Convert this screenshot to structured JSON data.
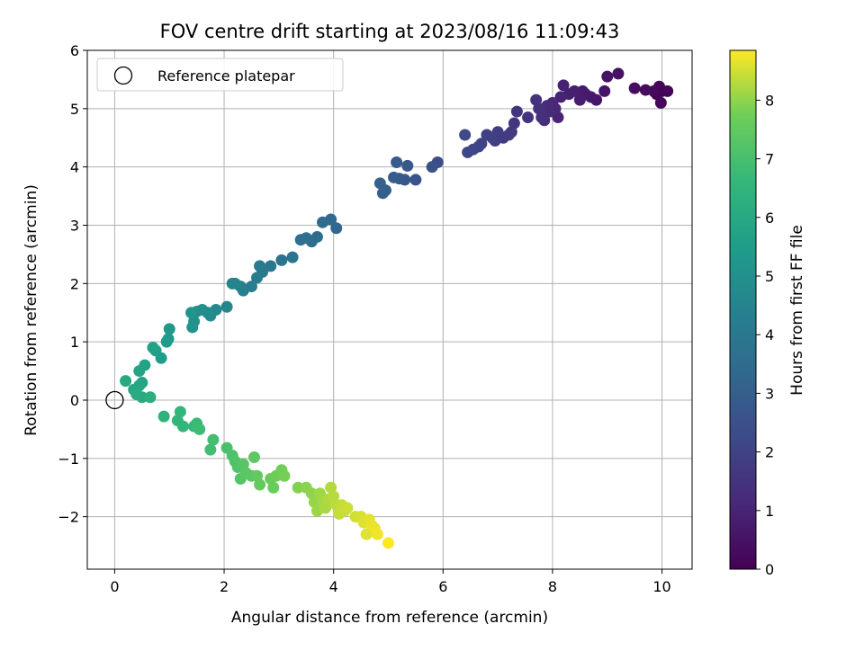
{
  "chart_data": {
    "type": "scatter",
    "title": "FOV centre drift starting at 2023/08/16 11:09:43",
    "xlabel": "Angular distance from reference (arcmin)",
    "ylabel": "Rotation from reference (arcmin)",
    "xlim": [
      -0.5,
      10.55
    ],
    "ylim": [
      -2.9,
      6.0
    ],
    "xticks": [
      0,
      2,
      4,
      6,
      8,
      10
    ],
    "yticks": [
      -2,
      -1,
      0,
      1,
      2,
      3,
      4,
      5,
      6
    ],
    "grid": true,
    "legend": {
      "placement": "top-left",
      "entries": [
        "Reference platepar"
      ]
    },
    "reference_point": {
      "x": 0,
      "y": 0
    },
    "colorbar": {
      "label": "Hours from first FF file",
      "colormap": "viridis",
      "range": [
        0,
        8.85
      ],
      "ticks": [
        0,
        1,
        2,
        3,
        4,
        5,
        6,
        7,
        8
      ]
    },
    "series": [
      {
        "points": [
          [
            10.0,
            5.3,
            0.0
          ],
          [
            9.95,
            5.38,
            0.05
          ],
          [
            9.9,
            5.25,
            0.1
          ],
          [
            10.1,
            5.3,
            0.15
          ],
          [
            9.98,
            5.1,
            0.2
          ],
          [
            9.85,
            5.3,
            0.25
          ],
          [
            9.7,
            5.32,
            0.3
          ],
          [
            9.5,
            5.35,
            0.38
          ],
          [
            9.2,
            5.6,
            0.45
          ],
          [
            9.0,
            5.55,
            0.5
          ],
          [
            8.95,
            5.3,
            0.55
          ],
          [
            8.8,
            5.15,
            0.6
          ],
          [
            8.7,
            5.2,
            0.65
          ],
          [
            8.6,
            5.25,
            0.7
          ],
          [
            8.55,
            5.3,
            0.75
          ],
          [
            8.5,
            5.15,
            0.8
          ],
          [
            8.4,
            5.3,
            0.85
          ],
          [
            8.3,
            5.25,
            0.9
          ],
          [
            8.2,
            5.4,
            0.95
          ],
          [
            8.15,
            5.2,
            1.0
          ],
          [
            8.1,
            4.85,
            1.05
          ],
          [
            8.05,
            5.0,
            1.1
          ],
          [
            8.0,
            5.1,
            1.15
          ],
          [
            7.95,
            4.95,
            1.2
          ],
          [
            7.9,
            5.05,
            1.25
          ],
          [
            7.85,
            4.8,
            1.3
          ],
          [
            7.8,
            4.85,
            1.35
          ],
          [
            7.75,
            5.0,
            1.4
          ],
          [
            7.7,
            5.15,
            1.45
          ],
          [
            7.55,
            4.85,
            1.5
          ],
          [
            7.35,
            4.95,
            1.55
          ],
          [
            7.3,
            4.75,
            1.6
          ],
          [
            7.25,
            4.6,
            1.65
          ],
          [
            7.2,
            4.55,
            1.7
          ],
          [
            7.1,
            4.5,
            1.75
          ],
          [
            7.0,
            4.6,
            1.8
          ],
          [
            6.95,
            4.45,
            1.85
          ],
          [
            6.9,
            4.5,
            1.9
          ],
          [
            6.8,
            4.55,
            1.95
          ],
          [
            6.7,
            4.4,
            2.0
          ],
          [
            6.65,
            4.35,
            2.05
          ],
          [
            6.55,
            4.3,
            2.1
          ],
          [
            6.45,
            4.25,
            2.15
          ],
          [
            6.4,
            4.55,
            2.2
          ],
          [
            5.9,
            4.08,
            2.4
          ],
          [
            5.8,
            4.0,
            2.5
          ],
          [
            5.5,
            3.78,
            2.6
          ],
          [
            5.35,
            4.02,
            2.7
          ],
          [
            5.3,
            3.78,
            2.75
          ],
          [
            5.2,
            3.8,
            2.8
          ],
          [
            5.15,
            4.08,
            2.85
          ],
          [
            5.1,
            3.82,
            2.9
          ],
          [
            4.95,
            3.6,
            3.0
          ],
          [
            4.9,
            3.55,
            3.05
          ],
          [
            4.85,
            3.72,
            3.1
          ],
          [
            4.05,
            2.95,
            3.3
          ],
          [
            3.95,
            3.1,
            3.4
          ],
          [
            3.8,
            3.05,
            3.45
          ],
          [
            3.7,
            2.8,
            3.5
          ],
          [
            3.6,
            2.72,
            3.55
          ],
          [
            3.5,
            2.78,
            3.6
          ],
          [
            3.4,
            2.75,
            3.65
          ],
          [
            3.25,
            2.45,
            3.75
          ],
          [
            3.05,
            2.4,
            3.85
          ],
          [
            2.85,
            2.3,
            3.95
          ],
          [
            2.7,
            2.2,
            4.05
          ],
          [
            2.65,
            2.3,
            4.1
          ],
          [
            2.6,
            2.1,
            4.15
          ],
          [
            2.5,
            1.95,
            4.25
          ],
          [
            2.35,
            1.88,
            4.35
          ],
          [
            2.3,
            1.95,
            4.4
          ],
          [
            2.2,
            2.0,
            4.45
          ],
          [
            2.15,
            2.0,
            4.5
          ],
          [
            2.05,
            1.6,
            4.6
          ],
          [
            1.85,
            1.55,
            4.75
          ],
          [
            1.75,
            1.45,
            4.8
          ],
          [
            1.7,
            1.5,
            4.85
          ],
          [
            1.6,
            1.55,
            4.9
          ],
          [
            1.5,
            1.52,
            4.95
          ],
          [
            1.45,
            1.35,
            5.05
          ],
          [
            1.42,
            1.25,
            5.1
          ],
          [
            1.4,
            1.5,
            5.15
          ],
          [
            1.0,
            1.22,
            5.35
          ],
          [
            0.98,
            1.05,
            5.4
          ],
          [
            0.95,
            1.0,
            5.45
          ],
          [
            0.85,
            0.72,
            5.55
          ],
          [
            0.75,
            0.85,
            5.6
          ],
          [
            0.7,
            0.9,
            5.65
          ],
          [
            0.55,
            0.6,
            5.75
          ],
          [
            0.45,
            0.5,
            5.8
          ],
          [
            0.5,
            0.3,
            5.85
          ],
          [
            0.45,
            0.25,
            5.9
          ],
          [
            0.35,
            0.18,
            5.95
          ],
          [
            0.2,
            0.33,
            6.0
          ],
          [
            0.5,
            0.05,
            6.05
          ],
          [
            0.4,
            0.1,
            6.1
          ],
          [
            0.65,
            0.05,
            6.2
          ],
          [
            0.9,
            -0.28,
            6.4
          ],
          [
            1.15,
            -0.35,
            6.5
          ],
          [
            1.2,
            -0.2,
            6.55
          ],
          [
            1.25,
            -0.45,
            6.6
          ],
          [
            1.45,
            -0.45,
            6.7
          ],
          [
            1.5,
            -0.4,
            6.75
          ],
          [
            1.55,
            -0.5,
            6.8
          ],
          [
            1.75,
            -0.85,
            6.9
          ],
          [
            1.8,
            -0.68,
            6.95
          ],
          [
            2.05,
            -0.82,
            7.05
          ],
          [
            2.15,
            -0.95,
            7.1
          ],
          [
            2.2,
            -1.05,
            7.15
          ],
          [
            2.25,
            -1.15,
            7.2
          ],
          [
            2.3,
            -1.35,
            7.25
          ],
          [
            2.35,
            -1.1,
            7.3
          ],
          [
            2.4,
            -1.25,
            7.35
          ],
          [
            2.5,
            -1.3,
            7.4
          ],
          [
            2.55,
            -0.98,
            7.45
          ],
          [
            2.6,
            -1.3,
            7.5
          ],
          [
            2.65,
            -1.45,
            7.55
          ],
          [
            2.85,
            -1.35,
            7.6
          ],
          [
            2.9,
            -1.5,
            7.65
          ],
          [
            2.95,
            -1.3,
            7.7
          ],
          [
            3.05,
            -1.2,
            7.75
          ],
          [
            3.1,
            -1.3,
            7.8
          ],
          [
            3.35,
            -1.5,
            7.9
          ],
          [
            3.5,
            -1.5,
            7.95
          ],
          [
            3.6,
            -1.6,
            8.0
          ],
          [
            3.65,
            -1.75,
            8.05
          ],
          [
            3.7,
            -1.9,
            8.1
          ],
          [
            3.75,
            -1.6,
            8.12
          ],
          [
            3.8,
            -1.75,
            8.15
          ],
          [
            3.85,
            -1.85,
            8.2
          ],
          [
            3.9,
            -1.7,
            8.25
          ],
          [
            3.95,
            -1.5,
            8.28
          ],
          [
            4.0,
            -1.65,
            8.3
          ],
          [
            4.05,
            -1.8,
            8.35
          ],
          [
            4.1,
            -1.95,
            8.4
          ],
          [
            4.15,
            -1.8,
            8.42
          ],
          [
            4.2,
            -1.9,
            8.45
          ],
          [
            4.25,
            -1.85,
            8.48
          ],
          [
            4.4,
            -2.0,
            8.5
          ],
          [
            4.5,
            -2.0,
            8.55
          ],
          [
            4.55,
            -2.1,
            8.6
          ],
          [
            4.6,
            -2.3,
            8.62
          ],
          [
            4.65,
            -2.05,
            8.65
          ],
          [
            4.7,
            -2.15,
            8.68
          ],
          [
            4.75,
            -2.2,
            8.72
          ],
          [
            4.8,
            -2.3,
            8.76
          ],
          [
            5.0,
            -2.45,
            8.85
          ]
        ]
      }
    ]
  }
}
